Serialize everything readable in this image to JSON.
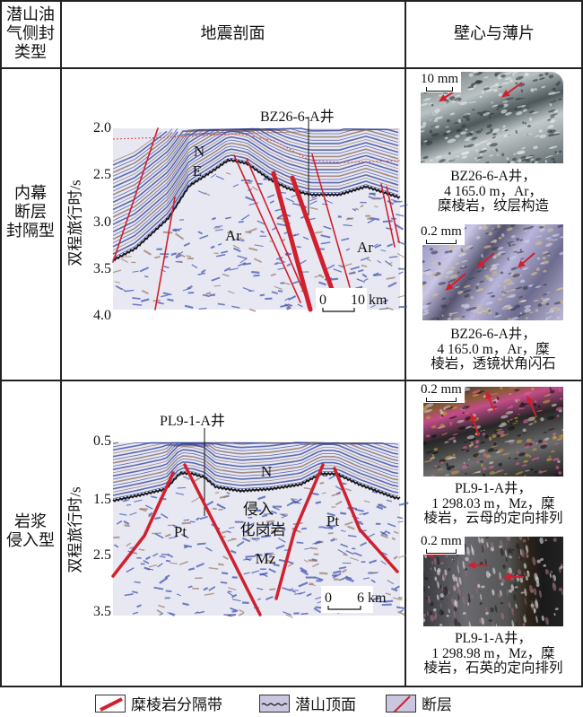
{
  "header": {
    "col1": [
      "潜山油",
      "气侧封",
      "类型"
    ],
    "col2": "地震剖面",
    "col3": "壁心与薄片"
  },
  "rows": [
    {
      "type": [
        "内幕",
        "断层",
        "封隔型"
      ],
      "section": {
        "well": "BZ26-6-A井",
        "yaxis": "双程旅行时/s",
        "ticks": [
          "2.0",
          "2.5",
          "3.0",
          "3.5",
          "4.0"
        ],
        "labels": {
          "n": "N",
          "e": "E",
          "ar1": "Ar",
          "ar2": "Ar"
        },
        "scale": {
          "zero": "0",
          "end": "10 km"
        }
      },
      "photos": [
        {
          "scale": "10 mm",
          "caption": [
            "BZ26-6-A井，",
            "4 165.0 m，Ar，",
            "糜棱岩，纹层构造"
          ]
        },
        {
          "scale": "0.2 mm",
          "caption": [
            "BZ26-6-A井，",
            "4 165.0 m，Ar，糜",
            "棱岩，透镜状角闪石"
          ]
        }
      ]
    },
    {
      "type": [
        "岩浆",
        "侵入型"
      ],
      "section": {
        "well": "PL9-1-A井",
        "yaxis": "双程旅行时/s",
        "ticks": [
          "0.5",
          "1.5",
          "2.5",
          "3.5"
        ],
        "labels": {
          "n": "N",
          "qr": "侵入",
          "hgy": "化岗岩",
          "pt1": "Pt",
          "pt2": "Pt",
          "mz": "Mz"
        },
        "scale": {
          "zero": "0",
          "end": "6 km"
        }
      },
      "photos": [
        {
          "scale": "0.2 mm",
          "caption": [
            "PL9-1-A井，",
            "1 298.03 m，Mz，糜",
            "棱岩，云母的定向排列"
          ]
        },
        {
          "scale": "0.2 mm",
          "caption": [
            "PL9-1-A井，",
            "1 298.98 m，Mz，糜",
            "棱岩，石英的定向排列"
          ]
        }
      ]
    }
  ],
  "legend": [
    {
      "icon": "mylonite-band-icon",
      "label": "糜棱岩分隔带"
    },
    {
      "icon": "buried-hill-top-icon",
      "label": "潜山顶面"
    },
    {
      "icon": "fault-icon",
      "label": "断层"
    }
  ],
  "colors": {
    "mylonite": "#d0202e",
    "fault": "#d0202e",
    "seismic_blue": "#2c3f9a",
    "legend_fill": "#c9c6e0"
  }
}
